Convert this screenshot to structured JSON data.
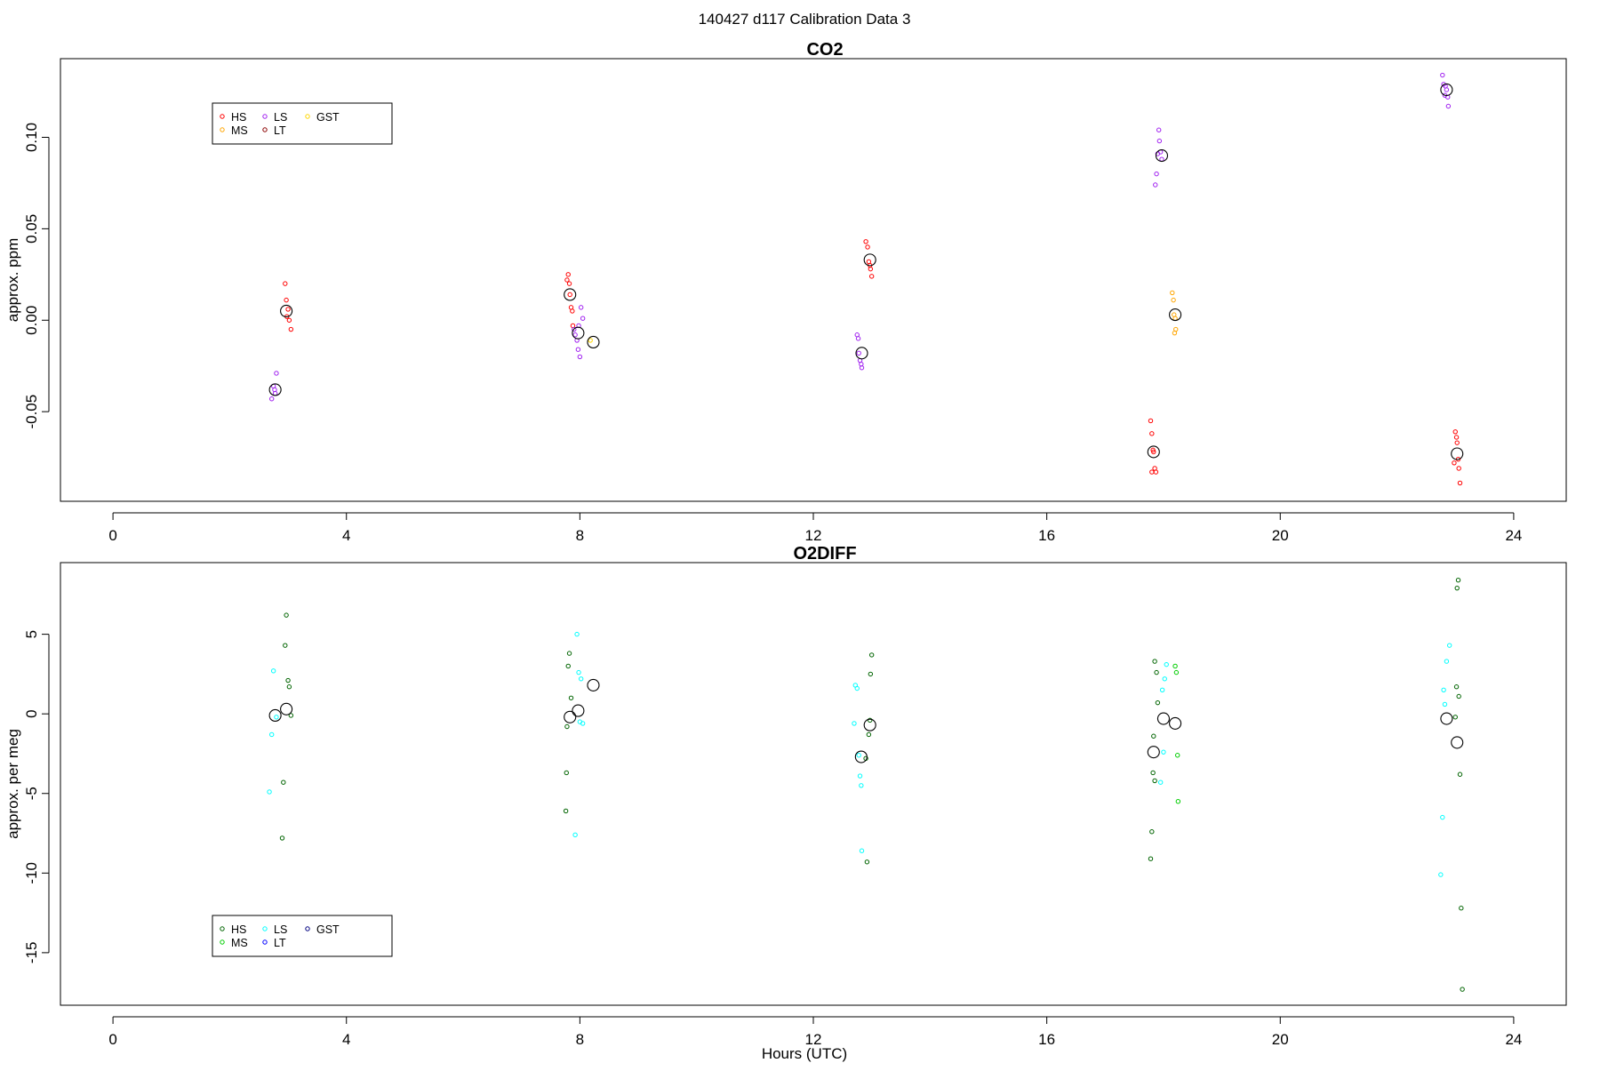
{
  "figure": {
    "title": "140427   d117   Calibration Data 3",
    "xlabel": "Hours (UTC)"
  },
  "chart_data": [
    {
      "type": "scatter",
      "title": "CO2",
      "xlabel": "",
      "ylabel": "approx. ppm",
      "xlim": [
        -0.9,
        24.9
      ],
      "ylim": [
        -0.099,
        0.143
      ],
      "x_ticks": [
        0,
        4,
        8,
        12,
        16,
        20,
        24
      ],
      "y_ticks": [
        -0.05,
        0.0,
        0.05,
        0.1
      ],
      "y_tick_labels": [
        "-0.05",
        "0.00",
        "0.05",
        "0.10"
      ],
      "legend": {
        "position": "top-left",
        "ncol": 3,
        "entries": [
          {
            "label": "HS",
            "color": "#ff0000"
          },
          {
            "label": "MS",
            "color": "#ffa500"
          },
          {
            "label": "LS",
            "color": "#a020f0"
          },
          {
            "label": "LT",
            "color": "#8b0000"
          },
          {
            "label": "GST",
            "color": "#ffd700"
          }
        ]
      },
      "series": [
        {
          "name": "HS",
          "color": "#ff0000",
          "points": [
            [
              2.95,
              0.02
            ],
            [
              2.97,
              0.011
            ],
            [
              3.0,
              0.006
            ],
            [
              2.98,
              0.002
            ],
            [
              3.02,
              0.0
            ],
            [
              3.05,
              -0.005
            ],
            [
              7.8,
              0.025
            ],
            [
              7.78,
              0.022
            ],
            [
              7.82,
              0.02
            ],
            [
              7.83,
              0.014
            ],
            [
              7.85,
              0.007
            ],
            [
              7.87,
              0.005
            ],
            [
              7.88,
              -0.003
            ],
            [
              12.9,
              0.043
            ],
            [
              12.93,
              0.04
            ],
            [
              12.95,
              0.032
            ],
            [
              12.97,
              0.03
            ],
            [
              12.98,
              0.028
            ],
            [
              13.0,
              0.024
            ],
            [
              17.78,
              -0.055
            ],
            [
              17.8,
              -0.062
            ],
            [
              17.82,
              -0.071
            ],
            [
              17.83,
              -0.072
            ],
            [
              17.85,
              -0.081
            ],
            [
              17.87,
              -0.083
            ],
            [
              17.8,
              -0.083
            ],
            [
              23.0,
              -0.061
            ],
            [
              23.02,
              -0.064
            ],
            [
              23.03,
              -0.067
            ],
            [
              23.05,
              -0.076
            ],
            [
              22.98,
              -0.078
            ],
            [
              23.06,
              -0.081
            ],
            [
              23.08,
              -0.089
            ]
          ]
        },
        {
          "name": "MS",
          "color": "#ffa500",
          "points": [
            [
              18.15,
              0.015
            ],
            [
              18.17,
              0.011
            ],
            [
              18.18,
              0.003
            ],
            [
              18.2,
              0.001
            ],
            [
              18.21,
              -0.005
            ],
            [
              18.19,
              -0.007
            ]
          ]
        },
        {
          "name": "LS",
          "color": "#a020f0",
          "points": [
            [
              2.8,
              -0.029
            ],
            [
              2.75,
              -0.036
            ],
            [
              2.77,
              -0.038
            ],
            [
              2.78,
              -0.04
            ],
            [
              2.72,
              -0.043
            ],
            [
              7.9,
              -0.005
            ],
            [
              7.92,
              -0.008
            ],
            [
              7.95,
              -0.011
            ],
            [
              7.97,
              -0.016
            ],
            [
              8.0,
              -0.02
            ],
            [
              8.02,
              0.007
            ],
            [
              8.05,
              0.001
            ],
            [
              7.98,
              -0.003
            ],
            [
              12.75,
              -0.008
            ],
            [
              12.77,
              -0.01
            ],
            [
              12.78,
              -0.018
            ],
            [
              12.8,
              -0.022
            ],
            [
              12.82,
              -0.024
            ],
            [
              12.83,
              -0.026
            ],
            [
              17.92,
              0.104
            ],
            [
              17.93,
              0.098
            ],
            [
              17.95,
              0.092
            ],
            [
              17.9,
              0.091
            ],
            [
              17.97,
              0.088
            ],
            [
              17.88,
              0.08
            ],
            [
              17.86,
              0.074
            ],
            [
              22.78,
              0.134
            ],
            [
              22.8,
              0.129
            ],
            [
              22.83,
              0.128
            ],
            [
              22.85,
              0.126
            ],
            [
              22.82,
              0.123
            ],
            [
              22.87,
              0.122
            ],
            [
              22.88,
              0.117
            ]
          ]
        },
        {
          "name": "LT",
          "color": "#8b0000",
          "points": []
        },
        {
          "name": "GST",
          "color": "#ffd700",
          "points": [
            [
              8.18,
              -0.011
            ]
          ]
        }
      ],
      "means": [
        [
          2.78,
          -0.038
        ],
        [
          2.97,
          0.005
        ],
        [
          7.83,
          0.014
        ],
        [
          7.97,
          -0.007
        ],
        [
          8.23,
          -0.012
        ],
        [
          12.97,
          0.033
        ],
        [
          12.83,
          -0.018
        ],
        [
          17.97,
          0.09
        ],
        [
          18.2,
          0.003
        ],
        [
          17.83,
          -0.072
        ],
        [
          22.85,
          0.126
        ],
        [
          23.03,
          -0.073
        ]
      ]
    },
    {
      "type": "scatter",
      "title": "O2DIFF",
      "xlabel": "Hours (UTC)",
      "ylabel": "approx. per meg",
      "xlim": [
        -0.9,
        24.9
      ],
      "ylim": [
        -18.3,
        9.5
      ],
      "x_ticks": [
        0,
        4,
        8,
        12,
        16,
        20,
        24
      ],
      "y_ticks": [
        -15,
        -10,
        -5,
        0,
        5
      ],
      "y_tick_labels": [
        "-15",
        "-10",
        "-5",
        "0",
        "5"
      ],
      "legend": {
        "position": "bottom-left",
        "ncol": 3,
        "entries": [
          {
            "label": "HS",
            "color": "#006400"
          },
          {
            "label": "MS",
            "color": "#00cd00"
          },
          {
            "label": "LS",
            "color": "#00ffff"
          },
          {
            "label": "LT",
            "color": "#0000ff"
          },
          {
            "label": "GST",
            "color": "#000080"
          }
        ]
      },
      "series": [
        {
          "name": "HS",
          "color": "#006400",
          "points": [
            [
              2.97,
              6.2
            ],
            [
              2.95,
              4.3
            ],
            [
              3.0,
              2.1
            ],
            [
              3.02,
              1.7
            ],
            [
              3.05,
              -0.1
            ],
            [
              2.92,
              -4.3
            ],
            [
              2.9,
              -7.8
            ],
            [
              7.82,
              3.8
            ],
            [
              7.8,
              3.0
            ],
            [
              7.85,
              1.0
            ],
            [
              7.78,
              -0.8
            ],
            [
              7.77,
              -3.7
            ],
            [
              7.76,
              -6.1
            ],
            [
              13.0,
              3.7
            ],
            [
              12.98,
              2.5
            ],
            [
              12.97,
              -0.4
            ],
            [
              12.95,
              -1.3
            ],
            [
              12.9,
              -2.8
            ],
            [
              12.92,
              -9.3
            ],
            [
              17.85,
              3.3
            ],
            [
              17.88,
              2.6
            ],
            [
              17.9,
              0.7
            ],
            [
              17.83,
              -1.4
            ],
            [
              17.82,
              -3.7
            ],
            [
              17.85,
              -4.2
            ],
            [
              17.8,
              -7.4
            ],
            [
              17.78,
              -9.1
            ],
            [
              23.05,
              8.4
            ],
            [
              23.03,
              7.9
            ],
            [
              23.02,
              1.7
            ],
            [
              23.06,
              1.1
            ],
            [
              23.0,
              -0.2
            ],
            [
              23.08,
              -3.8
            ],
            [
              23.1,
              -12.2
            ],
            [
              23.12,
              -17.3
            ]
          ]
        },
        {
          "name": "MS",
          "color": "#00cd00",
          "points": [
            [
              18.2,
              3.0
            ],
            [
              18.22,
              2.6
            ],
            [
              18.24,
              -2.6
            ],
            [
              18.25,
              -5.5
            ]
          ]
        },
        {
          "name": "LS",
          "color": "#00ffff",
          "points": [
            [
              2.75,
              2.7
            ],
            [
              2.8,
              -0.2
            ],
            [
              2.72,
              -1.3
            ],
            [
              2.68,
              -4.9
            ],
            [
              7.95,
              5.0
            ],
            [
              7.98,
              2.6
            ],
            [
              8.02,
              2.2
            ],
            [
              8.0,
              -0.5
            ],
            [
              8.05,
              -0.6
            ],
            [
              7.92,
              -7.6
            ],
            [
              12.72,
              1.8
            ],
            [
              12.75,
              1.6
            ],
            [
              12.7,
              -0.6
            ],
            [
              12.78,
              -2.6
            ],
            [
              12.8,
              -3.9
            ],
            [
              12.82,
              -4.5
            ],
            [
              12.83,
              -8.6
            ],
            [
              18.05,
              3.1
            ],
            [
              18.02,
              2.2
            ],
            [
              17.98,
              1.5
            ],
            [
              18.0,
              -2.4
            ],
            [
              17.95,
              -4.3
            ],
            [
              22.9,
              4.3
            ],
            [
              22.85,
              3.3
            ],
            [
              22.8,
              1.5
            ],
            [
              22.82,
              0.6
            ],
            [
              22.78,
              -6.5
            ],
            [
              22.75,
              -10.1
            ]
          ]
        },
        {
          "name": "LT",
          "color": "#0000ff",
          "points": []
        },
        {
          "name": "GST",
          "color": "#000080",
          "points": []
        }
      ],
      "means": [
        [
          2.78,
          -0.1
        ],
        [
          2.97,
          0.3
        ],
        [
          7.83,
          -0.2
        ],
        [
          7.97,
          0.2
        ],
        [
          8.23,
          1.8
        ],
        [
          12.82,
          -2.7
        ],
        [
          12.97,
          -0.7
        ],
        [
          17.83,
          -2.4
        ],
        [
          18.0,
          -0.3
        ],
        [
          18.2,
          -0.6
        ],
        [
          22.85,
          -0.3
        ],
        [
          23.03,
          -1.8
        ]
      ]
    }
  ]
}
